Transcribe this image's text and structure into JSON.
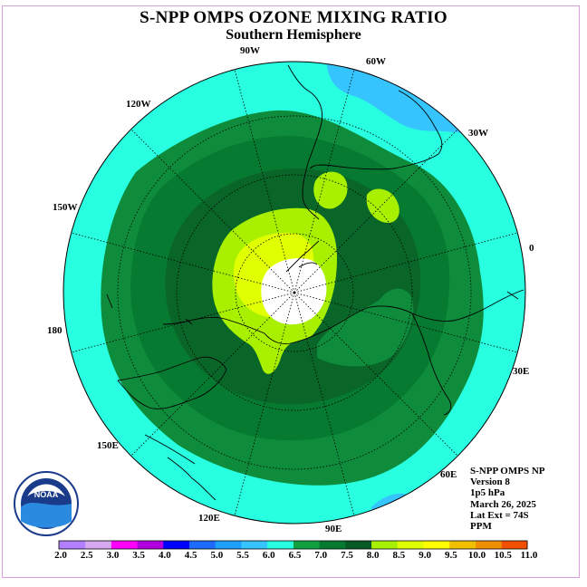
{
  "title": "S-NPP OMPS OZONE MIXING RATIO",
  "subtitle": "Southern Hemisphere",
  "longitude_labels": [
    "90W",
    "60W",
    "30W",
    "0",
    "30E",
    "60E",
    "90E",
    "120E",
    "150E",
    "180",
    "150W",
    "120W"
  ],
  "info": {
    "instrument": "S-NPP OMPS NP",
    "version": "Version 8",
    "level": "1p5 hPa",
    "date": "March 26, 2025",
    "lat_ext": "Lat Ext = 74S",
    "units": "PPM"
  },
  "logo": {
    "text": "NOAA"
  },
  "colorbar": {
    "ticks": [
      "2.0",
      "2.5",
      "3.0",
      "3.5",
      "4.0",
      "4.5",
      "5.0",
      "5.5",
      "6.0",
      "6.5",
      "7.0",
      "7.5",
      "8.0",
      "8.5",
      "9.0",
      "9.5",
      "10.0",
      "10.5",
      "11.0"
    ],
    "colors": [
      "#b380ff",
      "#d6a8f0",
      "#ff00ff",
      "#b000e0",
      "#0000ff",
      "#1e6cff",
      "#1ea0ff",
      "#36c4ff",
      "#28ffe0",
      "#10a040",
      "#067a30",
      "#075a25",
      "#a8f000",
      "#e0ff00",
      "#ffff00",
      "#f0c000",
      "#f09000",
      "#f05000",
      "#ff0000",
      "#7a4a20"
    ]
  },
  "map_colors": {
    "ocean_fill": "#28ffe0",
    "outer_blue": "#36c4ff",
    "band_6_0": "#0e8c3c",
    "band_6_5": "#067a30",
    "band_7_0": "#0a6628",
    "band_7_5": "#a8f000",
    "band_8_0": "#e0ff00",
    "pole_mask": "#ffffff"
  }
}
